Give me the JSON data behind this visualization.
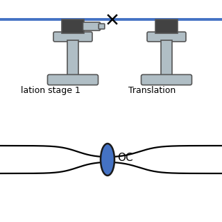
{
  "bg_color": "#ffffff",
  "fiber_color": "#4472c4",
  "stage_color": "#b0bec5",
  "stage_dark": "#424242",
  "stage_edge": "#555555",
  "oc_fill": "#4472c4",
  "oc_edge": "#1a1a1a",
  "text_color": "#000000",
  "label1": "lation stage 1",
  "label2": "Translation ",
  "oc_label": "OC",
  "figsize": [
    3.2,
    3.2
  ],
  "dpi": 100
}
